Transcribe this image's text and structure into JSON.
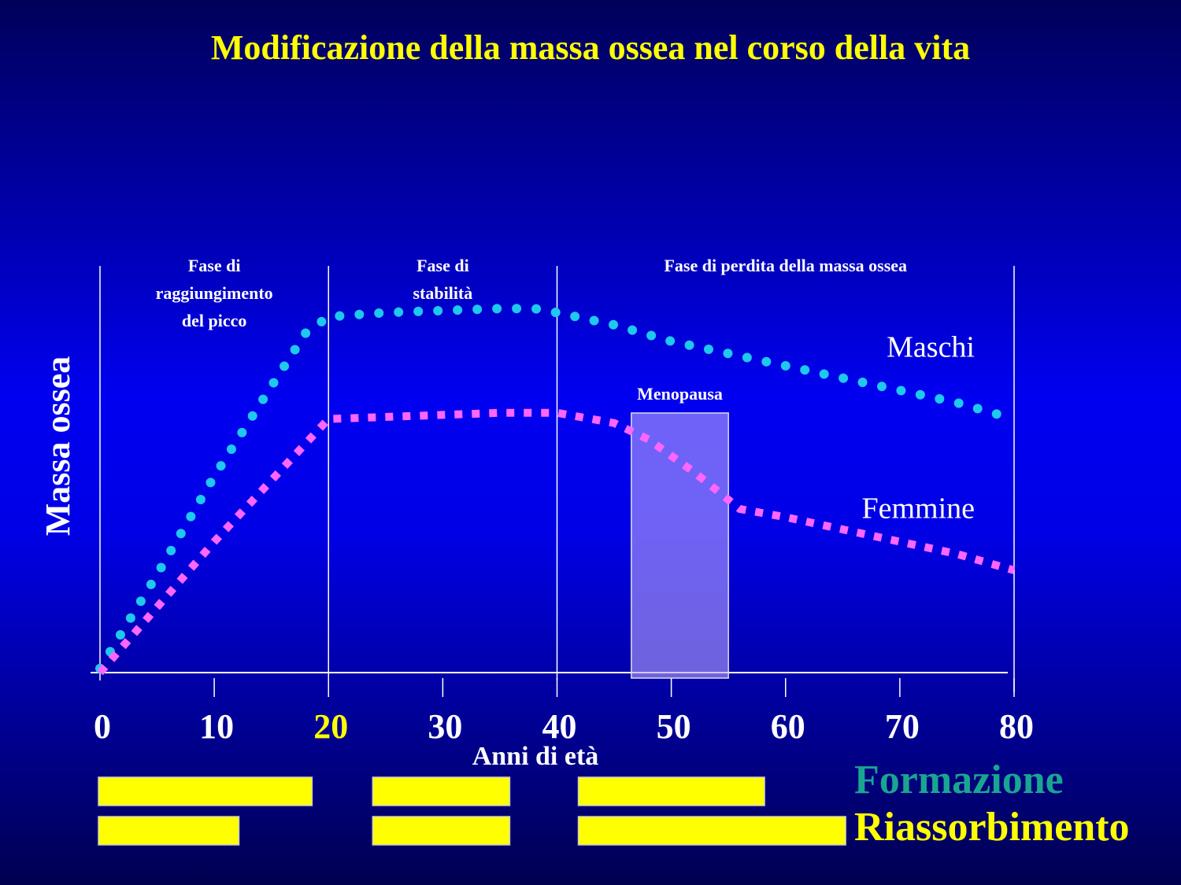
{
  "chart_data": {
    "type": "line",
    "title": "Modificazione della massa ossea nel corso della vita",
    "x_label": "Anni di età",
    "y_label": "Massa ossea",
    "xlim": [
      0,
      80
    ],
    "ylim": [
      0,
      100
    ],
    "xticks": [
      0,
      10,
      20,
      30,
      40,
      50,
      60,
      70,
      80
    ],
    "xtick_colors": [
      "#ffffff",
      "#ffffff",
      "#ffff00",
      "#ffffff",
      "#ffffff",
      "#ffffff",
      "#ffffff",
      "#ffffff",
      "#ffffff"
    ],
    "series": [
      {
        "name": "Maschi",
        "color": "#1ec8f0",
        "x": [
          0,
          5,
          10,
          15,
          18,
          20,
          25,
          30,
          35,
          38,
          40,
          45,
          50,
          55,
          60,
          65,
          70,
          75,
          80
        ],
        "values": [
          1,
          24,
          48,
          70,
          83,
          87,
          88,
          88.5,
          89,
          89,
          88,
          85,
          81,
          78,
          75,
          72,
          69,
          66,
          62
        ]
      },
      {
        "name": "Femmine",
        "color": "#ff66ff",
        "x": [
          0,
          5,
          10,
          15,
          20,
          25,
          30,
          35,
          40,
          45,
          48,
          52,
          56,
          60,
          65,
          70,
          75,
          80
        ],
        "values": [
          0,
          16,
          32,
          47,
          62,
          62.5,
          63,
          63.5,
          63.5,
          61,
          57,
          49,
          40,
          38,
          35,
          32,
          29,
          25
        ]
      }
    ],
    "phases": [
      {
        "lines": [
          "Fase di",
          "raggiungimento",
          "del picco"
        ],
        "start": 0,
        "end": 20
      },
      {
        "lines": [
          "Fase di",
          "stabilità"
        ],
        "start": 20,
        "end": 40
      },
      {
        "lines": [
          "Fase di perdita della massa ossea"
        ],
        "start": 40,
        "end": 80
      }
    ],
    "band": {
      "label": "Menopausa",
      "start": 46.5,
      "end": 55
    },
    "activity": [
      {
        "name": "Formazione",
        "color": "#1aa592",
        "bars": [
          [
            0,
            18.7
          ],
          [
            24,
            36
          ],
          [
            42,
            58.3
          ]
        ]
      },
      {
        "name": "Riassorbimento",
        "color": "#ffff00",
        "bars": [
          [
            0,
            12.3
          ],
          [
            24,
            36
          ],
          [
            42,
            65.4
          ]
        ]
      }
    ]
  }
}
